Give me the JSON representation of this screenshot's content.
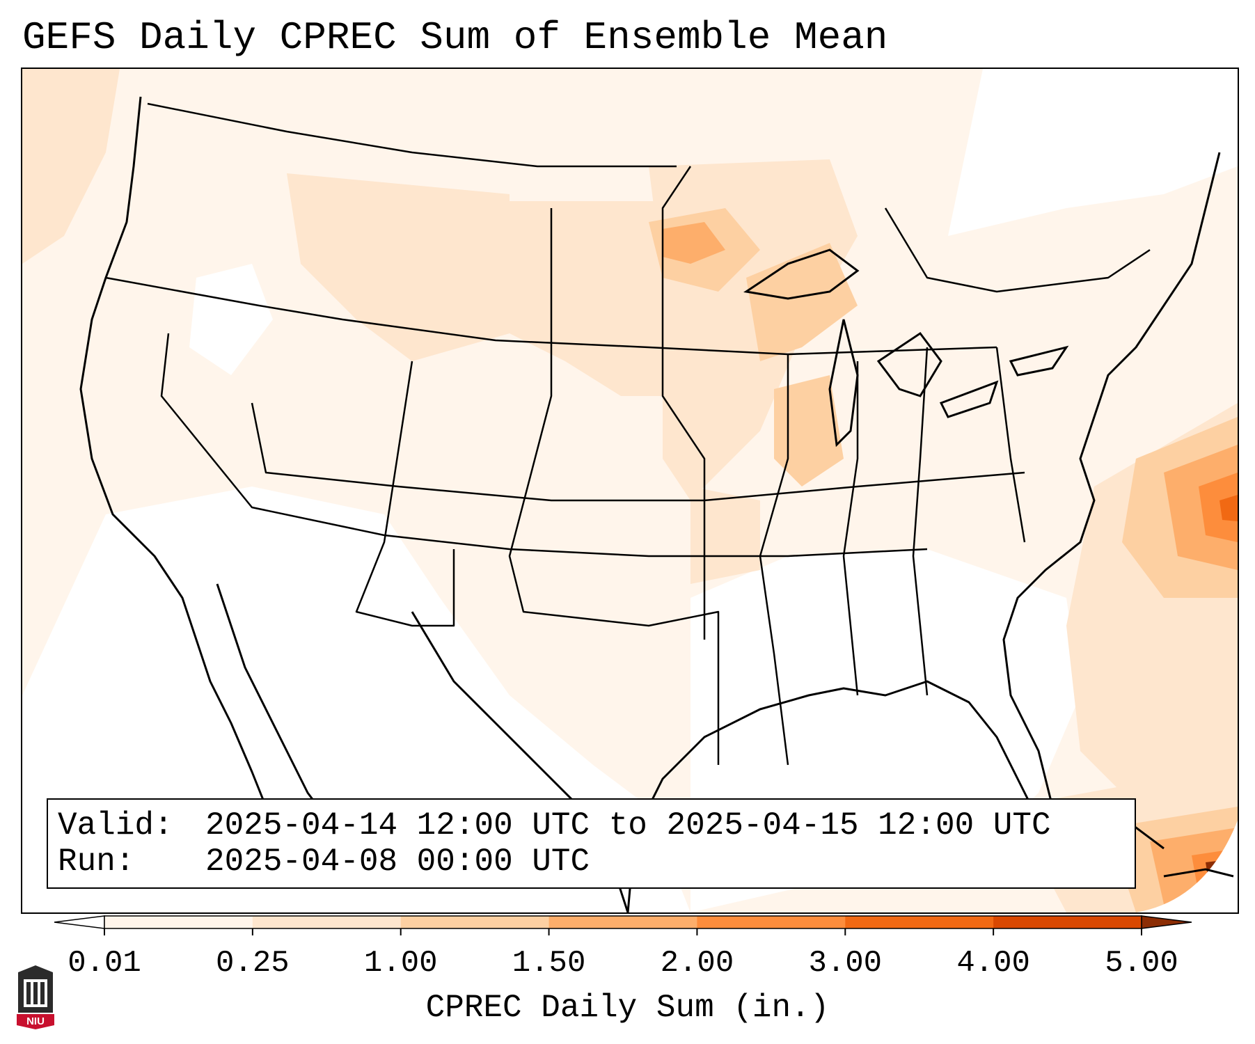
{
  "title": "GEFS Daily CPREC Sum of Ensemble Mean",
  "info": {
    "valid_label": "Valid:",
    "valid_value": "2025-04-14 12:00 UTC to 2025-04-15 12:00 UTC",
    "run_label": "Run:",
    "run_value": "2025-04-08 00:00 UTC"
  },
  "colorbar": {
    "title": "CPREC Daily Sum (in.)",
    "ticks": [
      "0.01",
      "0.25",
      "1.00",
      "1.50",
      "2.00",
      "3.00",
      "4.00",
      "5.00"
    ],
    "colors": [
      "#fff5eb",
      "#fee6ce",
      "#fdd0a2",
      "#fdae6b",
      "#fd8d3c",
      "#f16913",
      "#d94801"
    ],
    "under_color": "#ffffff",
    "over_color": "#8c2d04"
  },
  "logo": {
    "text": "NIU",
    "color": "#c8102e"
  }
}
